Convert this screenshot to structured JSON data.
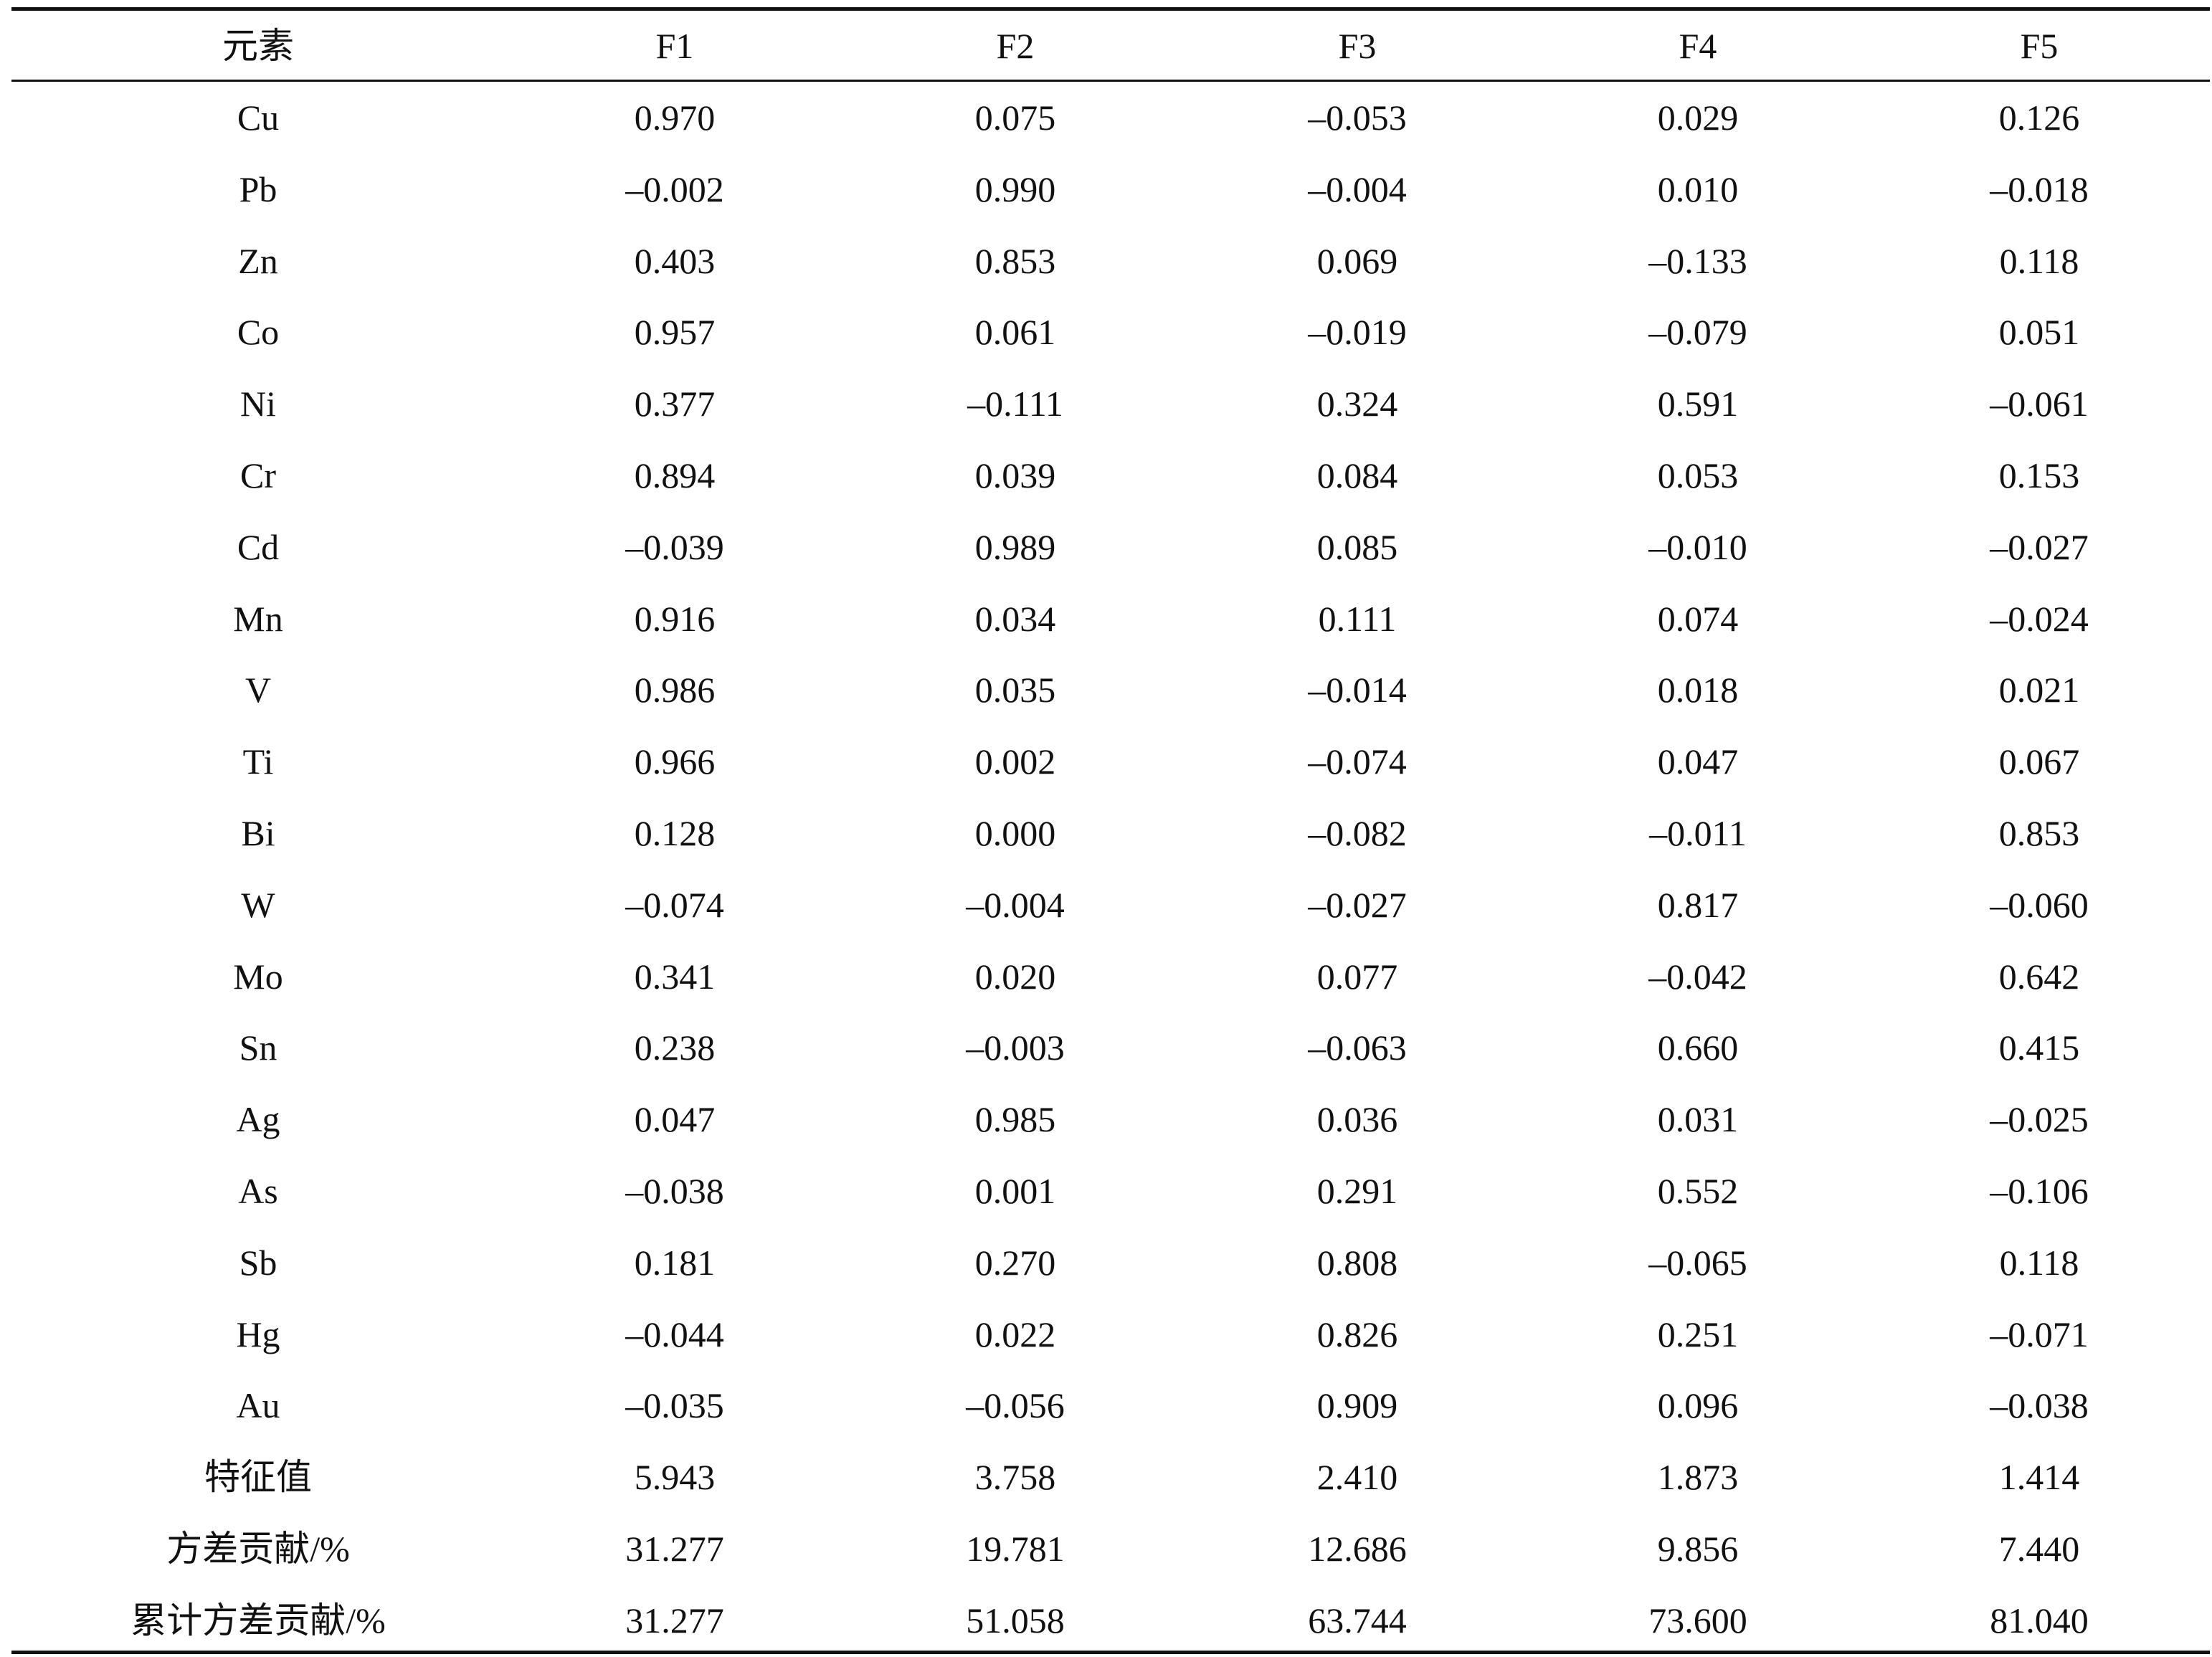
{
  "table": {
    "header": [
      "元素",
      "F1",
      "F2",
      "F3",
      "F4",
      "F5"
    ],
    "rows": [
      [
        "Cu",
        "0.970",
        "0.075",
        "–0.053",
        "0.029",
        "0.126"
      ],
      [
        "Pb",
        "–0.002",
        "0.990",
        "–0.004",
        "0.010",
        "–0.018"
      ],
      [
        "Zn",
        "0.403",
        "0.853",
        "0.069",
        "–0.133",
        "0.118"
      ],
      [
        "Co",
        "0.957",
        "0.061",
        "–0.019",
        "–0.079",
        "0.051"
      ],
      [
        "Ni",
        "0.377",
        "–0.111",
        "0.324",
        "0.591",
        "–0.061"
      ],
      [
        "Cr",
        "0.894",
        "0.039",
        "0.084",
        "0.053",
        "0.153"
      ],
      [
        "Cd",
        "–0.039",
        "0.989",
        "0.085",
        "–0.010",
        "–0.027"
      ],
      [
        "Mn",
        "0.916",
        "0.034",
        "0.111",
        "0.074",
        "–0.024"
      ],
      [
        "V",
        "0.986",
        "0.035",
        "–0.014",
        "0.018",
        "0.021"
      ],
      [
        "Ti",
        "0.966",
        "0.002",
        "–0.074",
        "0.047",
        "0.067"
      ],
      [
        "Bi",
        "0.128",
        "0.000",
        "–0.082",
        "–0.011",
        "0.853"
      ],
      [
        "W",
        "–0.074",
        "–0.004",
        "–0.027",
        "0.817",
        "–0.060"
      ],
      [
        "Mo",
        "0.341",
        "0.020",
        "0.077",
        "–0.042",
        "0.642"
      ],
      [
        "Sn",
        "0.238",
        "–0.003",
        "–0.063",
        "0.660",
        "0.415"
      ],
      [
        "Ag",
        "0.047",
        "0.985",
        "0.036",
        "0.031",
        "–0.025"
      ],
      [
        "As",
        "–0.038",
        "0.001",
        "0.291",
        "0.552",
        "–0.106"
      ],
      [
        "Sb",
        "0.181",
        "0.270",
        "0.808",
        "–0.065",
        "0.118"
      ],
      [
        "Hg",
        "–0.044",
        "0.022",
        "0.826",
        "0.251",
        "–0.071"
      ],
      [
        "Au",
        "–0.035",
        "–0.056",
        "0.909",
        "0.096",
        "–0.038"
      ],
      [
        "特征值",
        "5.943",
        "3.758",
        "2.410",
        "1.873",
        "1.414"
      ],
      [
        "方差贡献/%",
        "31.277",
        "19.781",
        "12.686",
        "9.856",
        "7.440"
      ],
      [
        "累计方差贡献/%",
        "31.277",
        "51.058",
        "63.744",
        "73.600",
        "81.040"
      ]
    ]
  }
}
